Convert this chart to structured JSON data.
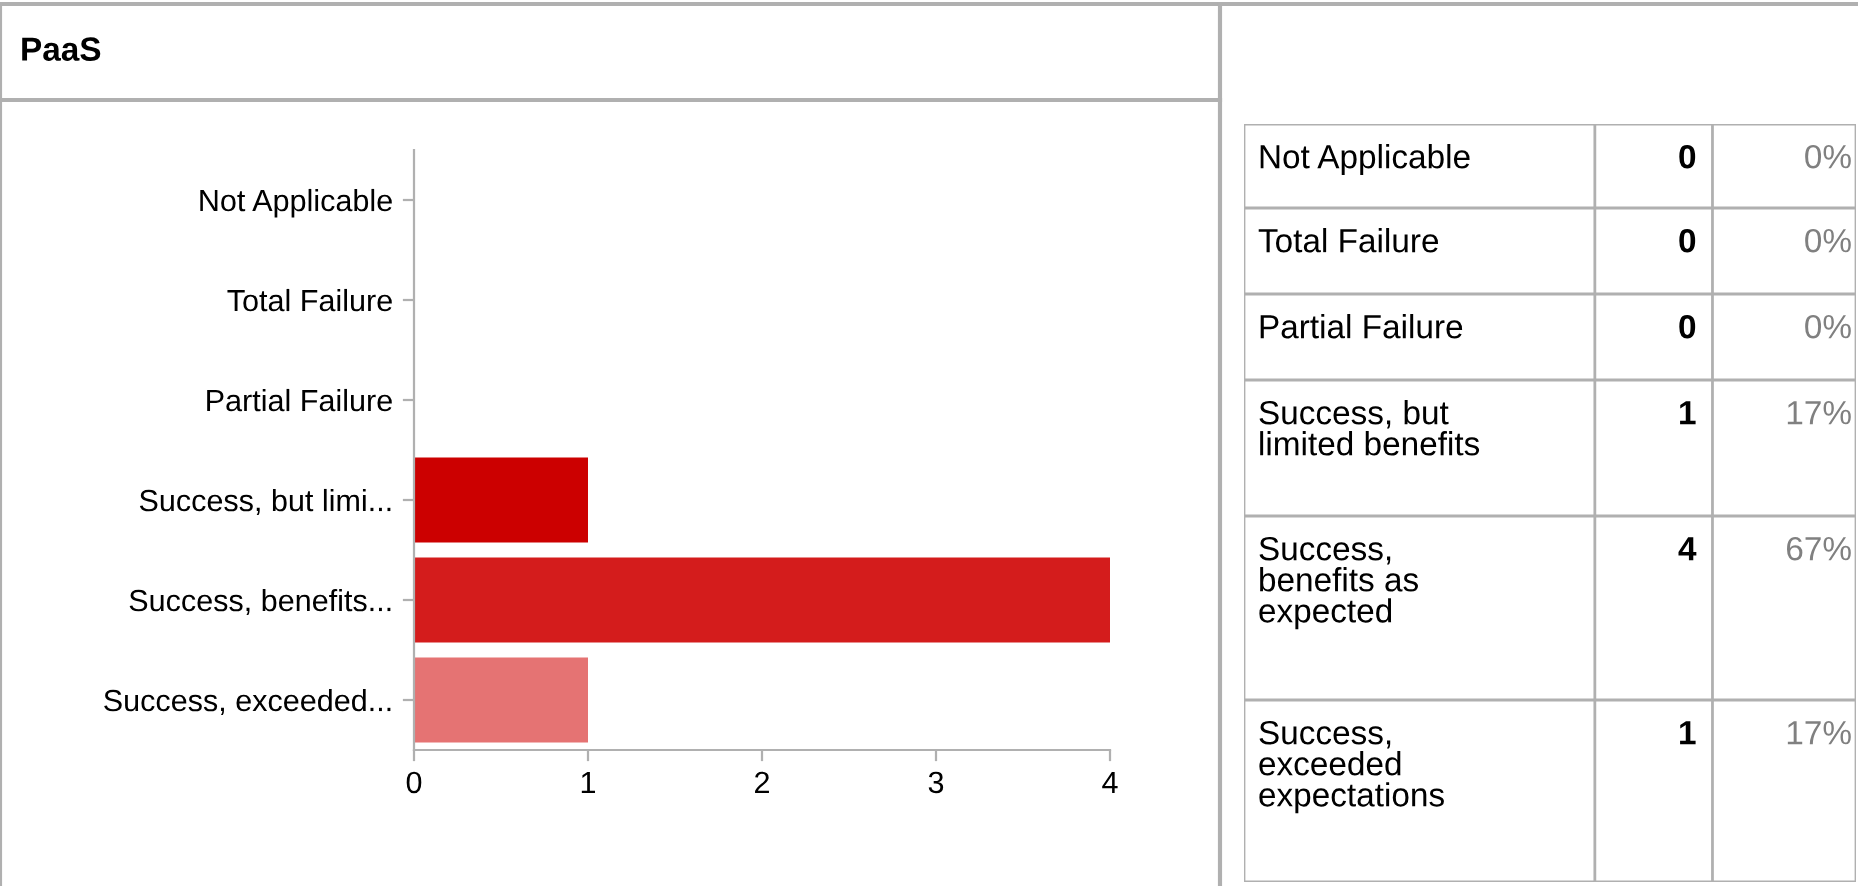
{
  "chart_data": [
    {
      "type": "bar",
      "title": "PaaS",
      "orientation": "horizontal",
      "categories": [
        "Not Applicable",
        "Total Failure",
        "Partial Failure",
        "Success, but limi...",
        "Success, benefits...",
        "Success, exceeded..."
      ],
      "values": [
        0,
        0,
        0,
        1,
        4,
        1
      ],
      "colors": [
        "#cc0000",
        "#cc0000",
        "#cc0000",
        "#cc0000",
        "#d41c1c",
        "#e57373"
      ],
      "xlim": [
        0,
        4
      ],
      "xticks": [
        0,
        1,
        2,
        3,
        4
      ],
      "grid": false,
      "legend": false
    },
    {
      "type": "other",
      "data_labels": true,
      "categories": [
        "Not Applicable",
        "Total Failure",
        "Partial Failure",
        "Success, but\nlimited benefits",
        "Success,\nbenefits as\nexpected",
        "Success,\nexceeded\nexpectations"
      ],
      "series": [
        {
          "values": [
            0,
            0,
            0,
            1,
            4,
            1
          ]
        },
        {
          "values": [
            0,
            0,
            0,
            17,
            67,
            17
          ],
          "value_labels": [
            "0%",
            "0%",
            "0%",
            "17%",
            "67%",
            "17%"
          ]
        }
      ]
    }
  ]
}
